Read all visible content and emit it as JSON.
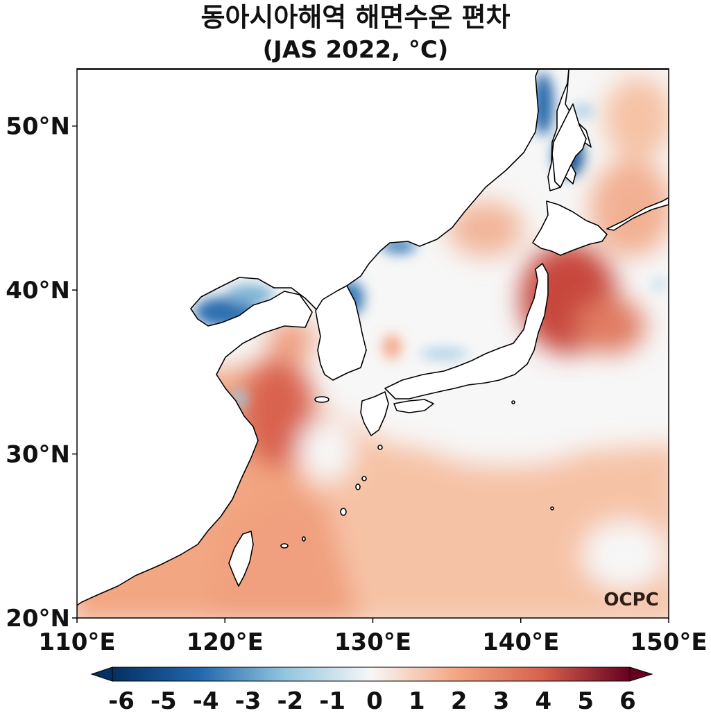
{
  "title": "동아시아해역 해면수온 편차",
  "subtitle": "(JAS 2022, °C)",
  "watermark": "OCPC",
  "map": {
    "lon_range": [
      110,
      150
    ],
    "lat_range": [
      20,
      53.5
    ],
    "lon_ticks": [
      "110°E",
      "120°E",
      "130°E",
      "140°E",
      "150°E"
    ],
    "lat_ticks": [
      "20°N",
      "30°N",
      "40°N",
      "50°N"
    ]
  },
  "colorbar": {
    "min": -6,
    "max": 6,
    "extend": "both",
    "ticks": [
      "-6",
      "-5",
      "-4",
      "-3",
      "-2",
      "-1",
      "0",
      "1",
      "2",
      "3",
      "4",
      "5",
      "6"
    ],
    "colors": {
      "m6": "#053061",
      "m4": "#2166ac",
      "m2": "#92c5de",
      "zero": "#f7f7f7",
      "p2": "#f4a582",
      "p4": "#d6604d",
      "p6": "#67001f"
    }
  }
}
